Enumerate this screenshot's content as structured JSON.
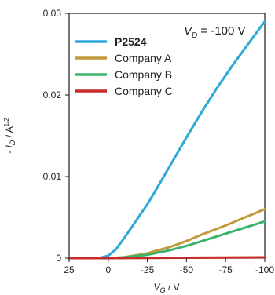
{
  "chart_data": {
    "type": "line",
    "annotation": {
      "main": "V",
      "sub": "D",
      "rest": " = -100 V"
    },
    "xlabel": {
      "main": "V",
      "sub": "G",
      "rest": " / V"
    },
    "ylabel": {
      "prefix": "- I",
      "sub": "D",
      "unit": " / A",
      "sup": "1/2"
    },
    "xlim": [
      25,
      -100
    ],
    "ylim": [
      0,
      0.03
    ],
    "x_ticks": [
      25,
      0,
      -25,
      -50,
      -75,
      -100
    ],
    "x_tick_labels": [
      "25",
      "0",
      "-25",
      "-50",
      "-75",
      "-100"
    ],
    "y_ticks": [
      0,
      0.01,
      0.02,
      0.03
    ],
    "y_tick_labels": [
      "0",
      "0.01",
      "0.02",
      "0.03"
    ],
    "legend_position": "upper-left",
    "grid": false,
    "series": [
      {
        "name": "P2524",
        "color": "#2ea8d8",
        "label_color": "#ef8a2b",
        "x": [
          30,
          20,
          10,
          5,
          0,
          -5,
          -10,
          -15,
          -20,
          -25,
          -30,
          -40,
          -50,
          -60,
          -70,
          -80,
          -90,
          -100
        ],
        "y": [
          0,
          0,
          0,
          5e-05,
          0.0003,
          0.0011,
          0.0024,
          0.0038,
          0.0052,
          0.0066,
          0.0082,
          0.0115,
          0.0148,
          0.018,
          0.021,
          0.0238,
          0.0264,
          0.029
        ]
      },
      {
        "name": "Company A",
        "color": "#c39a3a",
        "x": [
          30,
          10,
          0,
          -10,
          -25,
          -40,
          -50,
          -60,
          -75,
          -90,
          -100
        ],
        "y": [
          0,
          0,
          0,
          0.0001,
          0.0006,
          0.0014,
          0.0021,
          0.0029,
          0.004,
          0.0052,
          0.006
        ]
      },
      {
        "name": "Company B",
        "color": "#3bb36a",
        "x": [
          30,
          10,
          0,
          -10,
          -25,
          -40,
          -50,
          -60,
          -75,
          -90,
          -100
        ],
        "y": [
          0,
          0,
          0,
          0.0001,
          0.0004,
          0.001,
          0.0015,
          0.0021,
          0.003,
          0.0039,
          0.0045
        ]
      },
      {
        "name": "Company C",
        "color": "#c72c2c",
        "x": [
          30,
          0,
          -50,
          -100
        ],
        "y": [
          0,
          0,
          5e-05,
          0.0001
        ]
      }
    ]
  }
}
